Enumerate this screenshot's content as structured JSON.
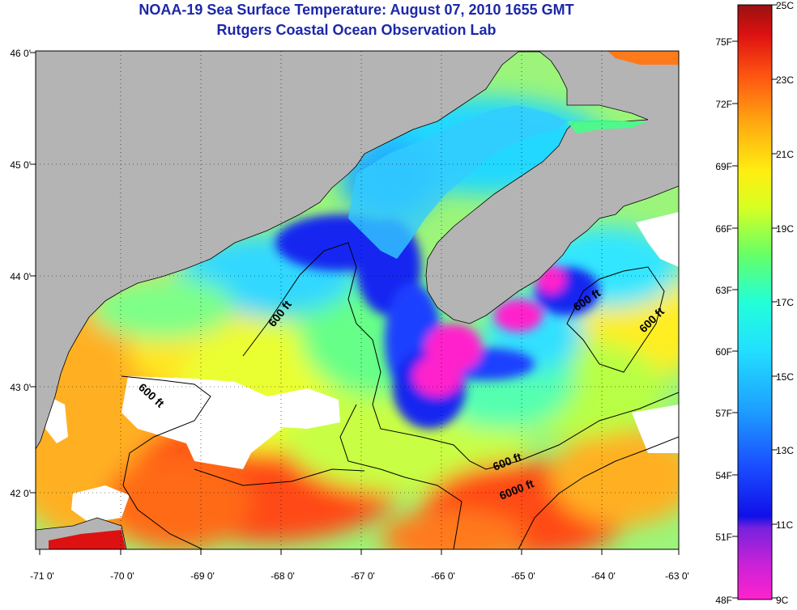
{
  "header": {
    "title": "NOAA-19 Sea Surface Temperature:  August 07, 2010 1655 GMT",
    "subtitle": "Rutgers Coastal Ocean Observation Lab"
  },
  "map": {
    "lon_ticks": [
      "-71 0'",
      "-70 0'",
      "-69 0'",
      "-68 0'",
      "-67 0'",
      "-66 0'",
      "-65 0'",
      "-64 0'",
      "-63 0'"
    ],
    "lat_ticks": [
      "46 0'",
      "45 0'",
      "44 0'",
      "43 0'",
      "42 0'"
    ],
    "contour_labels": [
      "600 ft",
      "600 ft",
      "600 ft",
      "600 ft",
      "600 ft",
      "6000 ft"
    ],
    "colors": {
      "land": "#b4b4b4",
      "cloud": "#ffffff",
      "border": "#000000"
    }
  },
  "colorbar": {
    "fahrenheit": [
      "75F",
      "72F",
      "69F",
      "66F",
      "63F",
      "60F",
      "57F",
      "54F",
      "51F",
      "48F"
    ],
    "celsius": [
      "25C",
      "23C",
      "21C",
      "19C",
      "17C",
      "15C",
      "13C",
      "11C",
      "9C"
    ],
    "colors": [
      "#ff22cc",
      "#8822dd",
      "#1010e8",
      "#1a6aff",
      "#22c8ff",
      "#22ffdd",
      "#44ff66",
      "#d8ff22",
      "#ffdd11",
      "#ff9911",
      "#ff4411",
      "#dd1111",
      "#991111"
    ]
  }
}
